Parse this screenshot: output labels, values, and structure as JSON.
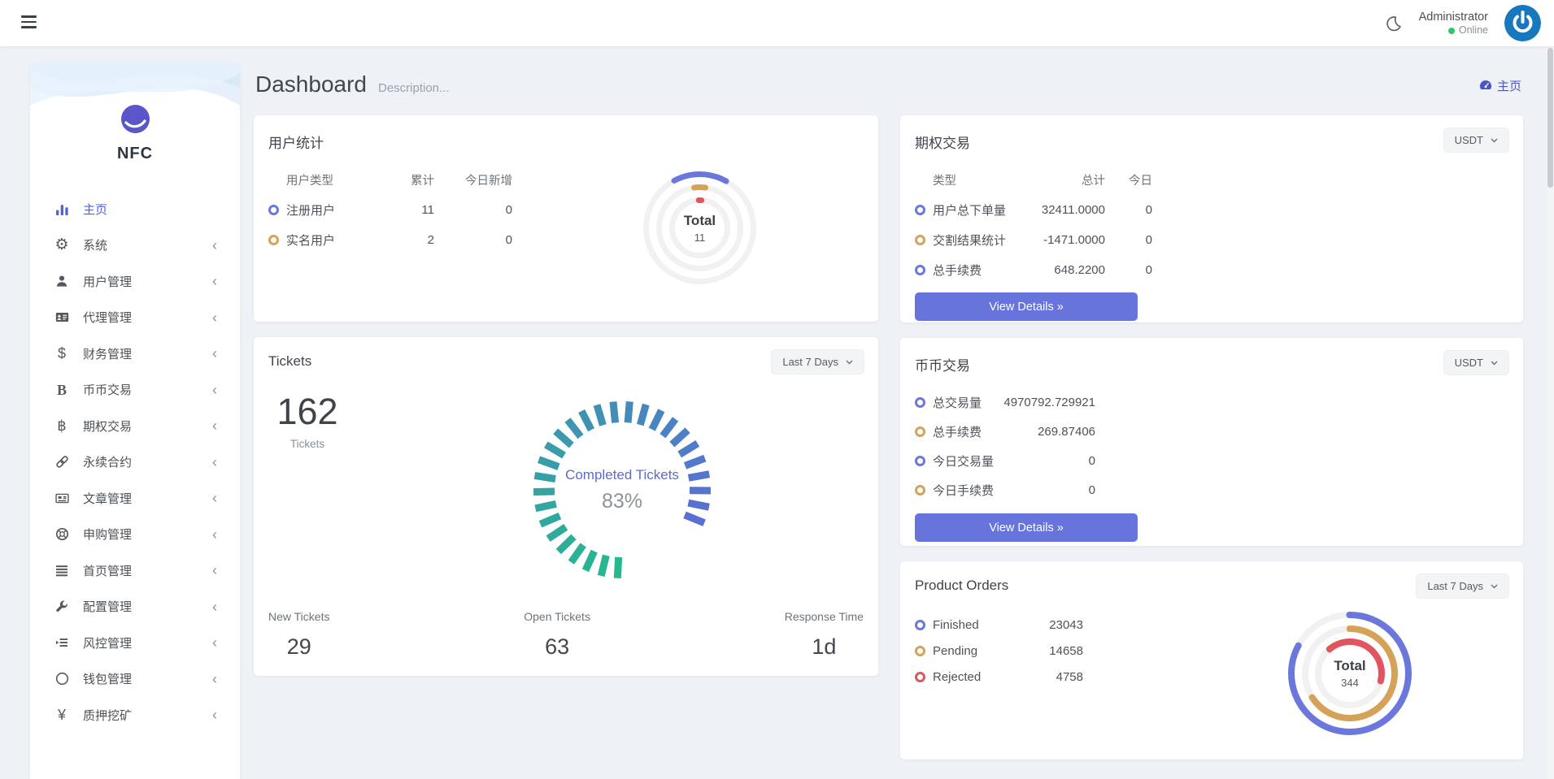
{
  "header": {
    "user_name": "Administrator",
    "user_status": "Online"
  },
  "icons": {
    "menu": "hamburger-3-bars",
    "moon": "crescent-dark-mode",
    "avatar": "blue-power-logo",
    "breadcrumb": "speedometer-dashboard",
    "select_chevron": "chevron-down",
    "sidebar_chevron": "chevron-left"
  },
  "breadcrumb": {
    "label": "主页"
  },
  "page": {
    "title": "Dashboard",
    "subtitle": "Description..."
  },
  "sidebar": {
    "logo_text": "NFC",
    "items": [
      {
        "name": "home",
        "icon": "bar-chart",
        "label": "主页",
        "active": true,
        "chevron": false
      },
      {
        "name": "system",
        "icon": "gear",
        "label": "系统",
        "active": false,
        "chevron": true
      },
      {
        "name": "user-management",
        "icon": "user",
        "label": "用户管理",
        "active": false,
        "chevron": true
      },
      {
        "name": "agent-management",
        "icon": "id-card",
        "label": "代理管理",
        "active": false,
        "chevron": true
      },
      {
        "name": "finance-management",
        "icon": "dollar",
        "label": "财务管理",
        "active": false,
        "chevron": true
      },
      {
        "name": "coin-trading",
        "icon": "letter-b",
        "label": "币币交易",
        "active": false,
        "chevron": true
      },
      {
        "name": "options-trading",
        "icon": "bitcoin",
        "label": "期权交易",
        "active": false,
        "chevron": true
      },
      {
        "name": "perpetual-contracts",
        "icon": "chain",
        "label": "永续合约",
        "active": false,
        "chevron": true
      },
      {
        "name": "article-management",
        "icon": "newspaper",
        "label": "文章管理",
        "active": false,
        "chevron": true
      },
      {
        "name": "subscribe-management",
        "icon": "life-ring",
        "label": "申购管理",
        "active": false,
        "chevron": true
      },
      {
        "name": "homepage-management",
        "icon": "list",
        "label": "首页管理",
        "active": false,
        "chevron": true
      },
      {
        "name": "config-management",
        "icon": "wrench",
        "label": "配置管理",
        "active": false,
        "chevron": true
      },
      {
        "name": "risk-management",
        "icon": "indent-list",
        "label": "风控管理",
        "active": false,
        "chevron": true
      },
      {
        "name": "wallet-management",
        "icon": "circle",
        "label": "钱包管理",
        "active": false,
        "chevron": true
      },
      {
        "name": "staking-mining",
        "icon": "yen",
        "label": "质押挖矿",
        "active": false,
        "chevron": true
      }
    ]
  },
  "cards": {
    "user_stats": {
      "title": "用户统计",
      "columns": [
        "用户类型",
        "累计",
        "今日新增"
      ],
      "rows": [
        {
          "label": "注册用户",
          "total": "11",
          "today": "0",
          "color": "#6c77dc"
        },
        {
          "label": "实名用户",
          "total": "2",
          "today": "0",
          "color": "#d6a258"
        }
      ],
      "donut": {
        "size": 165,
        "stroke": 7,
        "bg": "#f1f1f1",
        "center_label": "Total",
        "center_value": "11",
        "rings": [
          {
            "r": 66,
            "color": "#6c77dc",
            "frac": 0.16,
            "start": -28
          },
          {
            "r": 50,
            "color": "#d6a258",
            "frac": 0.045,
            "start": -8
          },
          {
            "r": 34,
            "color": "#e25560",
            "frac": 0.016,
            "start": -2
          }
        ]
      }
    },
    "options_trading": {
      "title": "期权交易",
      "currency": "USDT",
      "columns": [
        "类型",
        "总计",
        "今日"
      ],
      "rows": [
        {
          "label": "用户总下单量",
          "total": "32411.0000",
          "today": "0",
          "color": "#6c77dc"
        },
        {
          "label": "交割结果统计",
          "total": "-1471.0000",
          "today": "0",
          "color": "#d6a258"
        },
        {
          "label": "总手续费",
          "total": "648.2200",
          "today": "0",
          "color": "#6c77dc"
        }
      ],
      "button": "View Details »"
    },
    "tickets": {
      "title": "Tickets",
      "filter": "Last 7 Days",
      "total": "162",
      "total_label": "Tickets",
      "gauge_label": "Completed Tickets",
      "gauge_percent": "83%",
      "gauge": {
        "size": 240,
        "r1": 83,
        "r2": 109,
        "width": 9,
        "step": 10.7,
        "gap_start": 122,
        "gap_end": 183,
        "from": "#25b98d",
        "to": "#5a6cd8"
      },
      "stats": [
        {
          "label": "New Tickets",
          "value": "29"
        },
        {
          "label": "Open Tickets",
          "value": "63"
        },
        {
          "label": "Response Time",
          "value": "1d"
        }
      ]
    },
    "coin_trading": {
      "title": "币币交易",
      "currency": "USDT",
      "rows": [
        {
          "label": "总交易量",
          "value": "4970792.729921",
          "color": "#6c77dc"
        },
        {
          "label": "总手续费",
          "value": "269.87406",
          "color": "#d6a258"
        },
        {
          "label": "今日交易量",
          "value": "0",
          "color": "#6c77dc"
        },
        {
          "label": "今日手续费",
          "value": "0",
          "color": "#d6a258"
        }
      ],
      "button": "View Details »"
    },
    "product_orders": {
      "title": "Product Orders",
      "filter": "Last 7 Days",
      "rows": [
        {
          "label": "Finished",
          "value": "23043",
          "color": "#6c77dc"
        },
        {
          "label": "Pending",
          "value": "14658",
          "color": "#d6a258"
        },
        {
          "label": "Rejected",
          "value": "4758",
          "color": "#e25560"
        }
      ],
      "donut": {
        "size": 180,
        "stroke": 8,
        "bg": "#f1f1f1",
        "center_label": "Total",
        "center_value": "344",
        "rings": [
          {
            "r": 72,
            "color": "#6c77dc",
            "frac": 0.83,
            "start": 0
          },
          {
            "r": 55,
            "color": "#d6a258",
            "frac": 0.66,
            "start": 0
          },
          {
            "r": 39,
            "color": "#e25560",
            "frac": 0.4,
            "start": -40
          }
        ]
      }
    }
  },
  "chart_data": [
    {
      "type": "donut",
      "title": "用户统计",
      "center": {
        "label": "Total",
        "value": 11
      },
      "series": [
        {
          "name": "注册用户",
          "value": 11,
          "color": "#6c77dc"
        },
        {
          "name": "实名用户",
          "value": 2,
          "color": "#d6a258"
        }
      ]
    },
    {
      "type": "gauge",
      "title": "Tickets",
      "label": "Completed Tickets",
      "percent": 83,
      "total_tickets": 162,
      "new_tickets": 29,
      "open_tickets": 63,
      "response_time": "1d",
      "colors": [
        "#25b98d",
        "#5a6cd8"
      ]
    },
    {
      "type": "donut",
      "title": "Product Orders",
      "center": {
        "label": "Total",
        "value": 344
      },
      "series": [
        {
          "name": "Finished",
          "value": 23043,
          "color": "#6c77dc"
        },
        {
          "name": "Pending",
          "value": 14658,
          "color": "#d6a258"
        },
        {
          "name": "Rejected",
          "value": 4758,
          "color": "#e25560"
        }
      ]
    }
  ]
}
